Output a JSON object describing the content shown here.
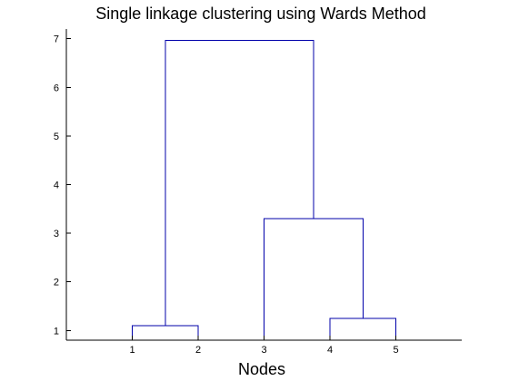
{
  "chart_data": {
    "type": "dendrogram",
    "title": "Single linkage clustering using Wards Method",
    "xlabel": "Nodes",
    "ylabel": "",
    "xlim": [
      0,
      6
    ],
    "ylim": [
      0.8,
      7.2
    ],
    "yticks": [
      1,
      2,
      3,
      4,
      5,
      6,
      7
    ],
    "leaf_order": [
      "1",
      "2",
      "3",
      "4",
      "5"
    ],
    "leaf_positions": [
      1,
      2,
      3,
      4,
      5
    ],
    "links": [
      {
        "x1": 1,
        "h1": 0.8,
        "x2": 2,
        "h2": 0.8,
        "height": 1.1
      },
      {
        "x1": 4,
        "h1": 0.8,
        "x2": 5,
        "h2": 0.8,
        "height": 1.25
      },
      {
        "x1": 3,
        "h1": 0.8,
        "x2": 4.5,
        "h2": 1.25,
        "height": 3.3
      },
      {
        "x1": 1.5,
        "h1": 1.1,
        "x2": 3.75,
        "h2": 3.3,
        "height": 6.97
      }
    ],
    "grid": false,
    "line_color": "#0000aa"
  }
}
